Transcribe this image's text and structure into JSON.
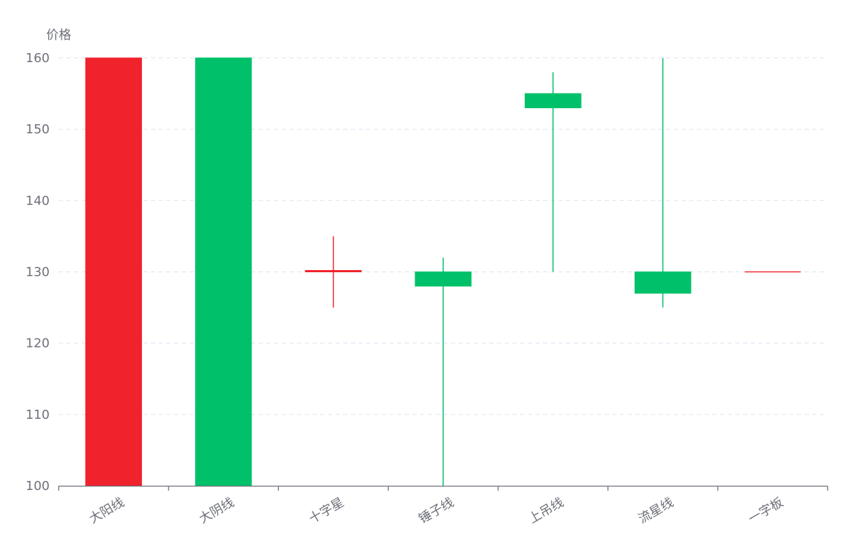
{
  "chart_data": {
    "type": "candlestick",
    "title": "",
    "xlabel": "",
    "ylabel": "价格",
    "categories": [
      "大阳线",
      "大阴线",
      "十字星",
      "锤子线",
      "上吊线",
      "流星线",
      "一字板"
    ],
    "ylim": [
      100,
      160
    ],
    "yticks": [
      100,
      110,
      120,
      130,
      140,
      150,
      160
    ],
    "grid": true,
    "x_label_rotation_deg": -30,
    "colors": {
      "up": "#f0232c",
      "down": "#00c16a",
      "grid": "#e0e6f1",
      "axis": "#6e7079",
      "text": "#6e7079"
    },
    "series": [
      {
        "values": [
          {
            "open": 100,
            "close": 160,
            "low": 100,
            "high": 160
          },
          {
            "open": 160,
            "close": 100,
            "low": 100,
            "high": 160
          },
          {
            "open": 130,
            "close": 130.2,
            "low": 125,
            "high": 135
          },
          {
            "open": 130,
            "close": 128,
            "low": 100,
            "high": 132
          },
          {
            "open": 155,
            "close": 153,
            "low": 130,
            "high": 158
          },
          {
            "open": 130,
            "close": 127,
            "low": 125,
            "high": 160
          },
          {
            "open": 130,
            "close": 130,
            "low": 130,
            "high": 130
          }
        ]
      }
    ]
  }
}
